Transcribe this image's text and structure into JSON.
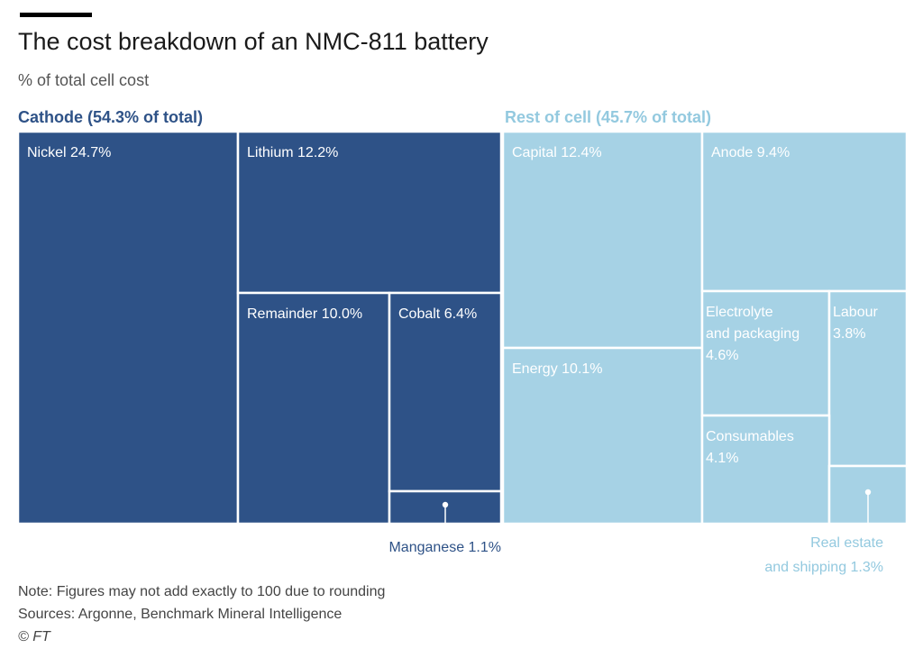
{
  "header": {
    "title": "The cost breakdown of an NMC-811 battery",
    "subtitle": "% of total cell cost"
  },
  "chart_data": {
    "type": "treemap",
    "unit": "% of total cell cost",
    "groups": [
      {
        "key": "cathode",
        "label": "Cathode (54.3% of total)",
        "value": 54.3,
        "color": "#2e5287",
        "label_color": "#2e5287",
        "text_color": "#ffffff",
        "items": [
          {
            "key": "nickel",
            "label": "Nickel 24.7%",
            "value": 24.7
          },
          {
            "key": "lithium",
            "label": "Lithium 12.2%",
            "value": 12.2
          },
          {
            "key": "remainder",
            "label": "Remainder 10.0%",
            "value": 10.0
          },
          {
            "key": "cobalt",
            "label": "Cobalt 6.4%",
            "value": 6.4
          },
          {
            "key": "manganese",
            "label": "Manganese 1.1%",
            "value": 1.1
          }
        ]
      },
      {
        "key": "rest",
        "label": "Rest of cell (45.7% of total)",
        "value": 45.7,
        "color": "#a6d2e5",
        "label_color": "#93c9df",
        "text_color": "#ffffff",
        "items": [
          {
            "key": "capital",
            "label": "Capital 12.4%",
            "value": 12.4
          },
          {
            "key": "energy",
            "label": "Energy 10.1%",
            "value": 10.1
          },
          {
            "key": "anode",
            "label": "Anode 9.4%",
            "value": 9.4
          },
          {
            "key": "electrolyte",
            "label": "Electrolyte and packaging 4.6%",
            "value": 4.6
          },
          {
            "key": "labour",
            "label": "Labour 3.8%",
            "value": 3.8
          },
          {
            "key": "consumables",
            "label": "Consumables 4.1%",
            "value": 4.1
          },
          {
            "key": "real-estate",
            "label": "Real estate and shipping 1.3%",
            "value": 1.3
          }
        ]
      }
    ]
  },
  "footer": {
    "note": "Note: Figures may not add exactly to 100 due to rounding",
    "sources": "Sources: Argonne, Benchmark Mineral Intelligence",
    "credit": "© FT"
  }
}
